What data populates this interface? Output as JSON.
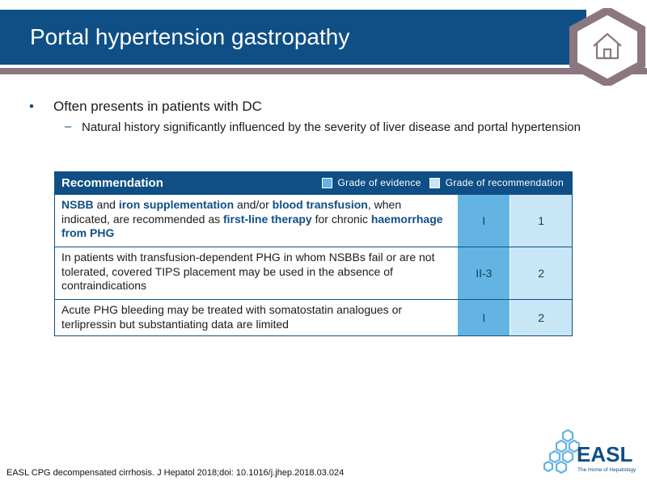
{
  "slide": {
    "title": "Portal hypertension gastropathy",
    "bullet_1": "Often presents in patients with DC",
    "bullet_1_1": "Natural history significantly influenced by the severity of liver disease and portal hypertension"
  },
  "table": {
    "header": "Recommendation",
    "legend_evidence": "Grade of evidence",
    "legend_recommendation": "Grade of recommendation",
    "rows": [
      {
        "parts": [
          {
            "t": "NSBB",
            "hl": true
          },
          {
            "t": " and ",
            "hl": false
          },
          {
            "t": "iron supplementation",
            "hl": true
          },
          {
            "t": " and/or ",
            "hl": false
          },
          {
            "t": "blood transfusion",
            "hl": true
          },
          {
            "t": ", when indicated, are recommended as ",
            "hl": false
          },
          {
            "t": "first-line therapy",
            "hl": true
          },
          {
            "t": " for chronic ",
            "hl": false
          },
          {
            "t": "haemorrhage from PHG",
            "hl": true
          }
        ],
        "evidence": "I",
        "recommendation": "1"
      },
      {
        "text": "In patients with transfusion-dependent PHG in whom NSBBs fail or are not tolerated, covered TIPS placement may be used in the absence of contraindications",
        "evidence": "II-3",
        "recommendation": "2"
      },
      {
        "text": "Acute PHG bleeding may be treated with somatostatin analogues or terlipressin but substantiating data are limited",
        "evidence": "I",
        "recommendation": "2"
      }
    ]
  },
  "logo": {
    "name": "EASL",
    "tagline": "The Home of Hepatology",
    "icon": "hexagon-cluster-logo"
  },
  "citation": "EASL CPG decompensated cirrhosis. J Hepatol 2018;doi: 10.1016/j.jhep.2018.03.024",
  "colors": {
    "brand": "#0f4f86",
    "evidence": "#63b4e2",
    "recommendation": "#c8e6f5",
    "rule": "#8a7780"
  }
}
